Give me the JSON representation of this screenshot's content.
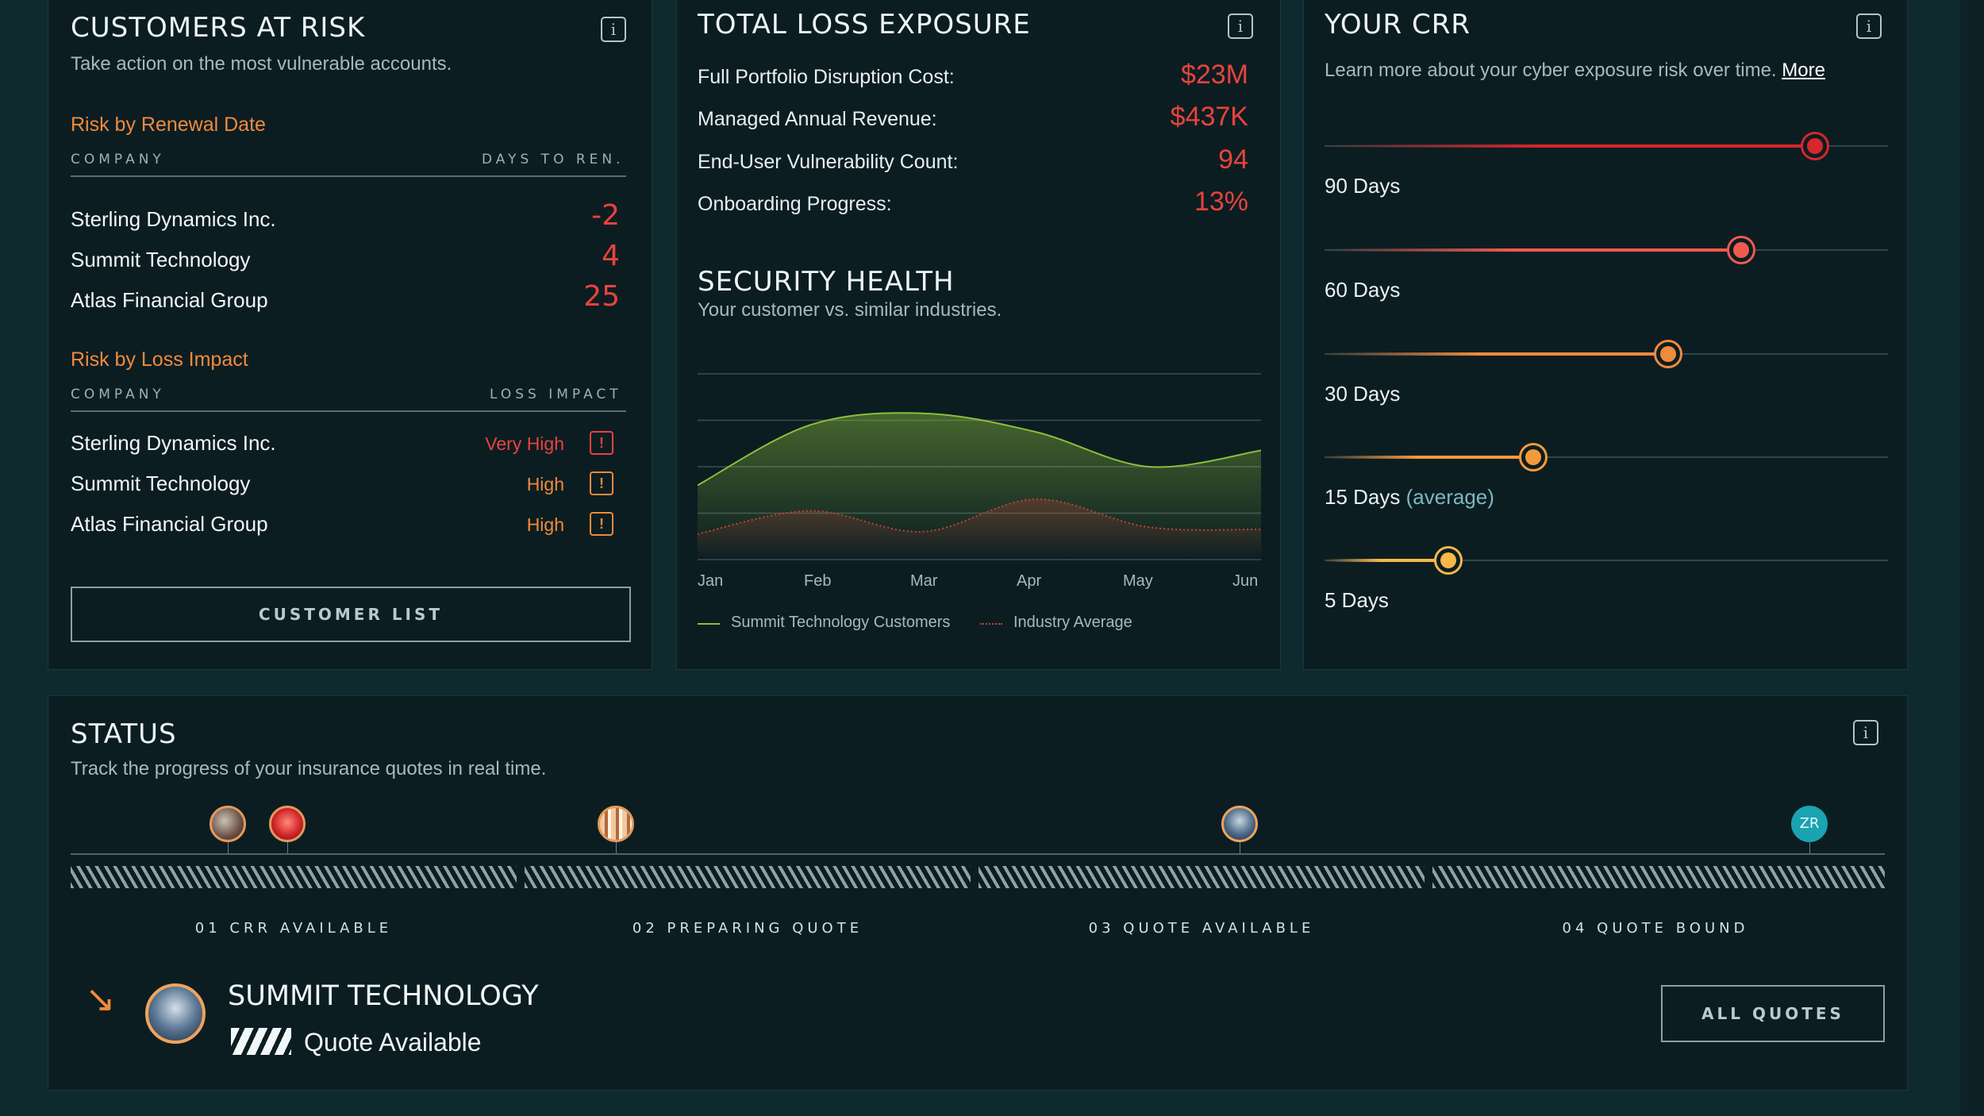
{
  "risk": {
    "title": "CUSTOMERS AT RISK",
    "subtitle": "Take action on the most vulnerable accounts.",
    "renewal_head": "Risk by Renewal Date",
    "col_company": "COMPANY",
    "col_days": "DAYS TO REN.",
    "renewal_rows": [
      {
        "company": "Sterling Dynamics Inc.",
        "days": "-2"
      },
      {
        "company": "Summit Technology",
        "days": "4"
      },
      {
        "company": "Atlas Financial Group",
        "days": "25"
      }
    ],
    "impact_head": "Risk by Loss Impact",
    "col_company2": "COMPANY",
    "col_impact": "LOSS IMPACT",
    "impact_rows": [
      {
        "company": "Sterling Dynamics Inc.",
        "impact": "Very High",
        "color": "#e8433d"
      },
      {
        "company": "Summit Technology",
        "impact": "High",
        "color": "#f08a3c"
      },
      {
        "company": "Atlas Financial Group",
        "impact": "High",
        "color": "#f08a3c"
      }
    ],
    "warn_glyph": "!",
    "button": "CUSTOMER LIST"
  },
  "exposure": {
    "title": "TOTAL LOSS EXPOSURE",
    "metrics": [
      {
        "label": "Full Portfolio Disruption Cost:",
        "value": "$23M"
      },
      {
        "label": "Managed Annual Revenue:",
        "value": "$437K"
      },
      {
        "label": "End-User Vulnerability Count:",
        "value": "94"
      },
      {
        "label": "Onboarding Progress:",
        "value": "13%"
      }
    ]
  },
  "health": {
    "title": "SECURITY HEALTH",
    "subtitle": "Your customer vs. similar industries.",
    "chart_data": {
      "type": "area",
      "categories": [
        "Jan",
        "Feb",
        "Mar",
        "Apr",
        "May",
        "Jun"
      ],
      "series": [
        {
          "name": "Summit Technology Customers",
          "color": "#8bbf3a",
          "values": [
            1.6,
            2.9,
            3.15,
            2.75,
            2.0,
            2.35
          ]
        },
        {
          "name": "Industry Average",
          "color": "#c0413a",
          "values": [
            0.55,
            1.05,
            0.6,
            1.3,
            0.7,
            0.65
          ]
        }
      ],
      "ylim": [
        0,
        4
      ],
      "grid": true,
      "legend": "bottom"
    }
  },
  "crr": {
    "title": "YOUR CRR",
    "subtitle": "Learn more about your cyber exposure risk over time.",
    "more": "More",
    "rows": [
      {
        "label": "90 Days",
        "suffix": "",
        "level": 0.87,
        "color": "#d8262a"
      },
      {
        "label": "60 Days",
        "suffix": "",
        "level": 0.74,
        "color": "#ef5a4f"
      },
      {
        "label": "30 Days",
        "suffix": "",
        "level": 0.61,
        "color": "#f08a3c"
      },
      {
        "label": "15 Days",
        "suffix": "(average)",
        "level": 0.37,
        "color": "#f59a3c"
      },
      {
        "label": "5 Days",
        "suffix": "",
        "level": 0.22,
        "color": "#f7b84a"
      }
    ]
  },
  "status": {
    "title": "STATUS",
    "subtitle": "Track the progress of your insurance quotes in real time.",
    "stages": [
      "01 CRR AVAILABLE",
      "02 PREPARING QUOTE",
      "03 QUOTE AVAILABLE",
      "04 QUOTE BOUND"
    ],
    "zr_initials": "ZR",
    "company": "SUMMIT TECHNOLOGY",
    "company_status": "Quote Available",
    "button": "ALL QUOTES"
  },
  "info_glyph": "i",
  "arrow_glyph": "↘"
}
